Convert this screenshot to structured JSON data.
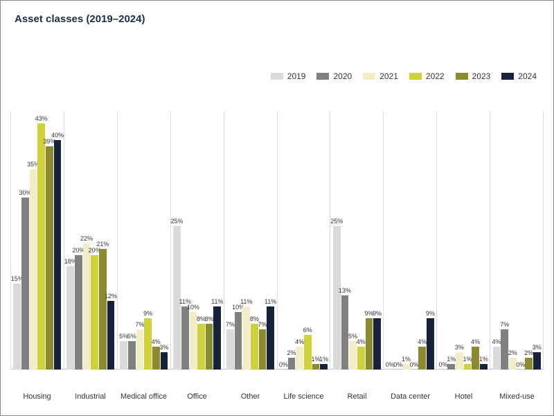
{
  "chart": {
    "type": "bar",
    "title": "Asset classes (2019–2024)",
    "title_color": "#1a2f4a",
    "title_fontsize": 15,
    "background_color": "#ffffff",
    "grid_color": "#d9d9d9",
    "baseline_color": "#bfbfbf",
    "ylim": [
      0,
      45
    ],
    "label_fontsize": 9,
    "xlabel_fontsize": 11,
    "series": [
      {
        "name": "2019",
        "color": "#d9d9d9"
      },
      {
        "name": "2020",
        "color": "#808080"
      },
      {
        "name": "2021",
        "color": "#f2edc7"
      },
      {
        "name": "2022",
        "color": "#cfd138"
      },
      {
        "name": "2023",
        "color": "#8c8a2e"
      },
      {
        "name": "2024",
        "color": "#16233b"
      }
    ],
    "categories": [
      {
        "label": "Housing",
        "values": [
          15,
          30,
          35,
          43,
          39,
          40
        ]
      },
      {
        "label": "Industrial",
        "values": [
          18,
          20,
          22,
          20,
          21,
          12
        ]
      },
      {
        "label": "Medical office",
        "values": [
          5,
          5,
          7,
          9,
          4,
          3
        ]
      },
      {
        "label": "Office",
        "values": [
          25,
          11,
          10,
          8,
          8,
          11
        ]
      },
      {
        "label": "Other",
        "values": [
          7,
          10,
          11,
          8,
          7,
          11
        ]
      },
      {
        "label": "Life science",
        "values": [
          0,
          2,
          4,
          6,
          1,
          1
        ]
      },
      {
        "label": "Retail",
        "values": [
          25,
          13,
          5,
          4,
          9,
          9
        ]
      },
      {
        "label": "Data center",
        "values": [
          0,
          0,
          1,
          0,
          4,
          9
        ]
      },
      {
        "label": "Hotel",
        "values": [
          0,
          1,
          3,
          1,
          4,
          1
        ]
      },
      {
        "label": "Mixed-use",
        "values": [
          4,
          7,
          2,
          0,
          2,
          3
        ]
      }
    ]
  }
}
